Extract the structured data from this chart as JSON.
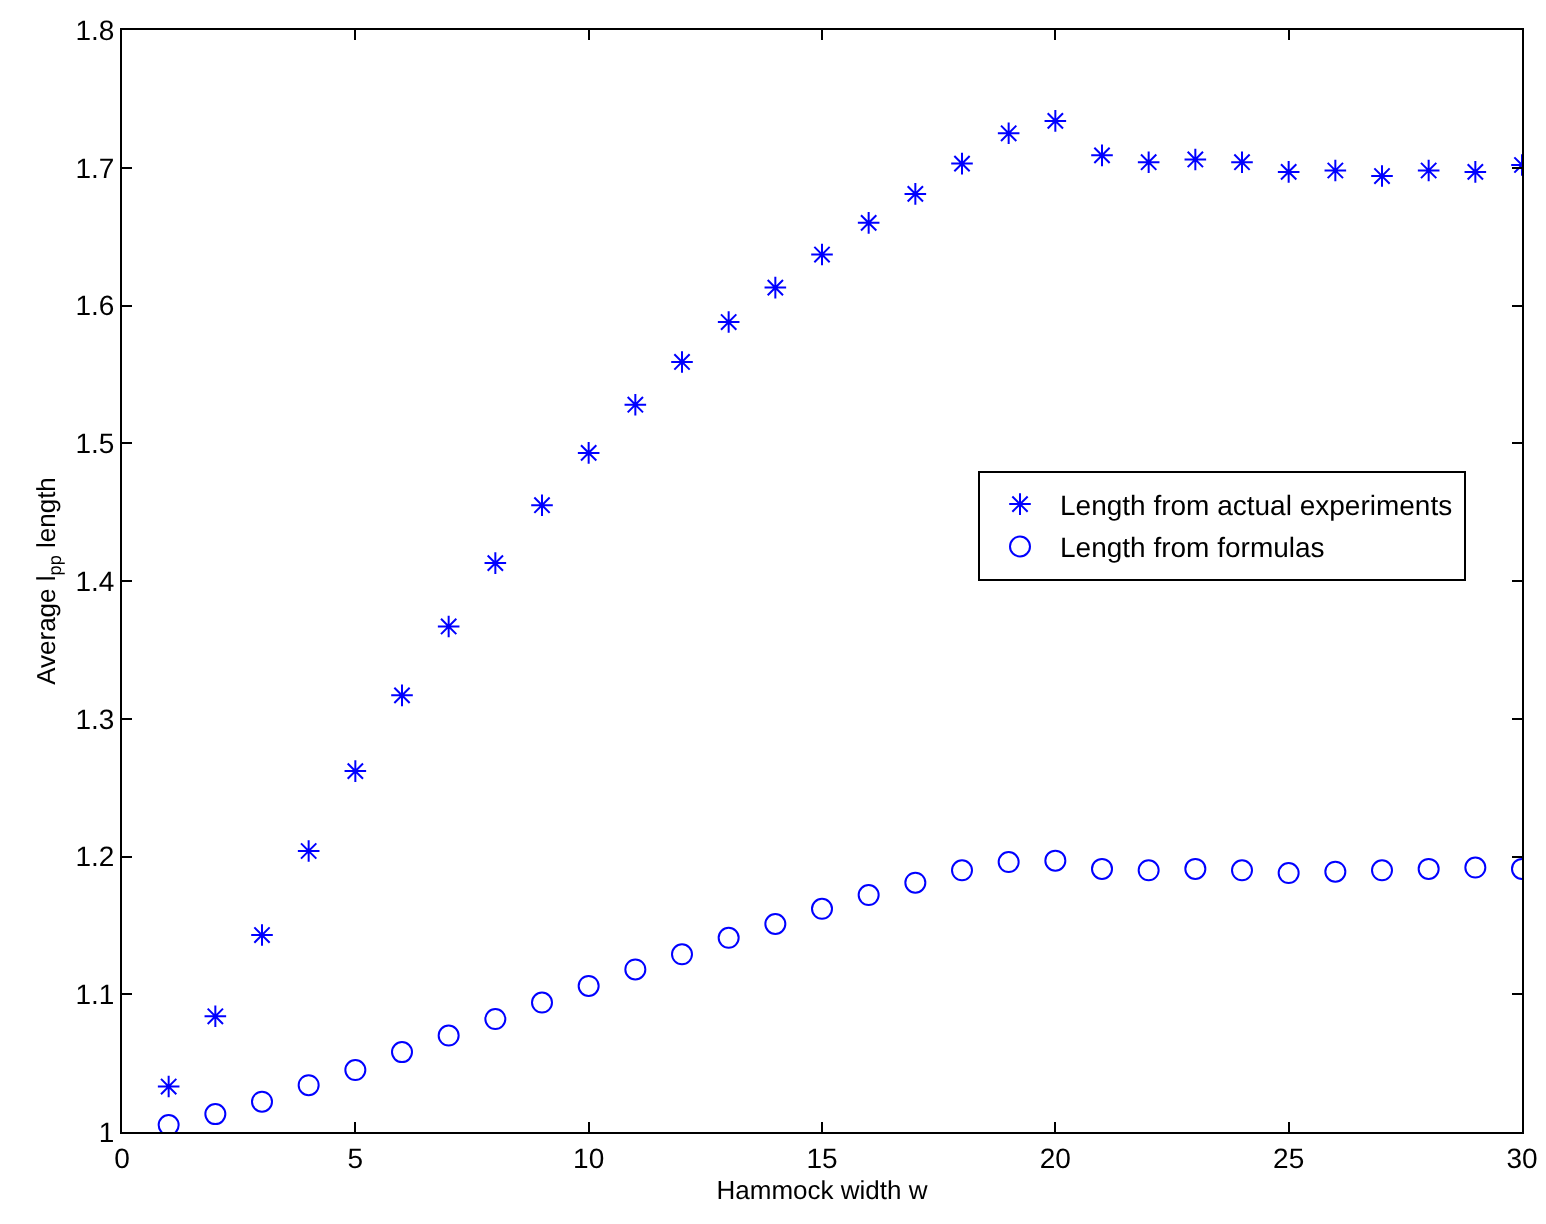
{
  "chart_data": {
    "type": "scatter",
    "xlabel": "Hammock width w",
    "ylabel": "Average l$_{pp}$ length",
    "x": [
      1,
      2,
      3,
      4,
      5,
      6,
      7,
      8,
      9,
      10,
      11,
      12,
      13,
      14,
      15,
      16,
      17,
      18,
      19,
      20,
      21,
      22,
      23,
      24,
      25,
      26,
      27,
      28,
      29,
      30
    ],
    "series": [
      {
        "name": "Length from actual experiments",
        "color": "#0000ff",
        "marker": "cross",
        "values": [
          1.033,
          1.084,
          1.143,
          1.204,
          1.262,
          1.317,
          1.367,
          1.413,
          1.455,
          1.493,
          1.528,
          1.559,
          1.588,
          1.613,
          1.637,
          1.66,
          1.681,
          1.703,
          1.725,
          1.734,
          1.709,
          1.704,
          1.706,
          1.704,
          1.697,
          1.698,
          1.694,
          1.698,
          1.697,
          1.702
        ]
      },
      {
        "name": "Length from formulas",
        "color": "#0000ff",
        "marker": "circle",
        "values": [
          1.005,
          1.013,
          1.022,
          1.034,
          1.045,
          1.058,
          1.07,
          1.082,
          1.094,
          1.106,
          1.118,
          1.129,
          1.141,
          1.151,
          1.162,
          1.172,
          1.181,
          1.19,
          1.196,
          1.197,
          1.191,
          1.19,
          1.191,
          1.19,
          1.188,
          1.189,
          1.19,
          1.191,
          1.192,
          1.191
        ]
      }
    ],
    "xlim": [
      0,
      30
    ],
    "xticks": [
      0,
      5,
      10,
      15,
      20,
      25,
      30
    ],
    "ylim": [
      1,
      1.8
    ],
    "yticks": [
      1,
      1.1,
      1.2,
      1.3,
      1.4,
      1.5,
      1.6,
      1.7,
      1.8
    ],
    "grid": false,
    "legend": "right"
  }
}
